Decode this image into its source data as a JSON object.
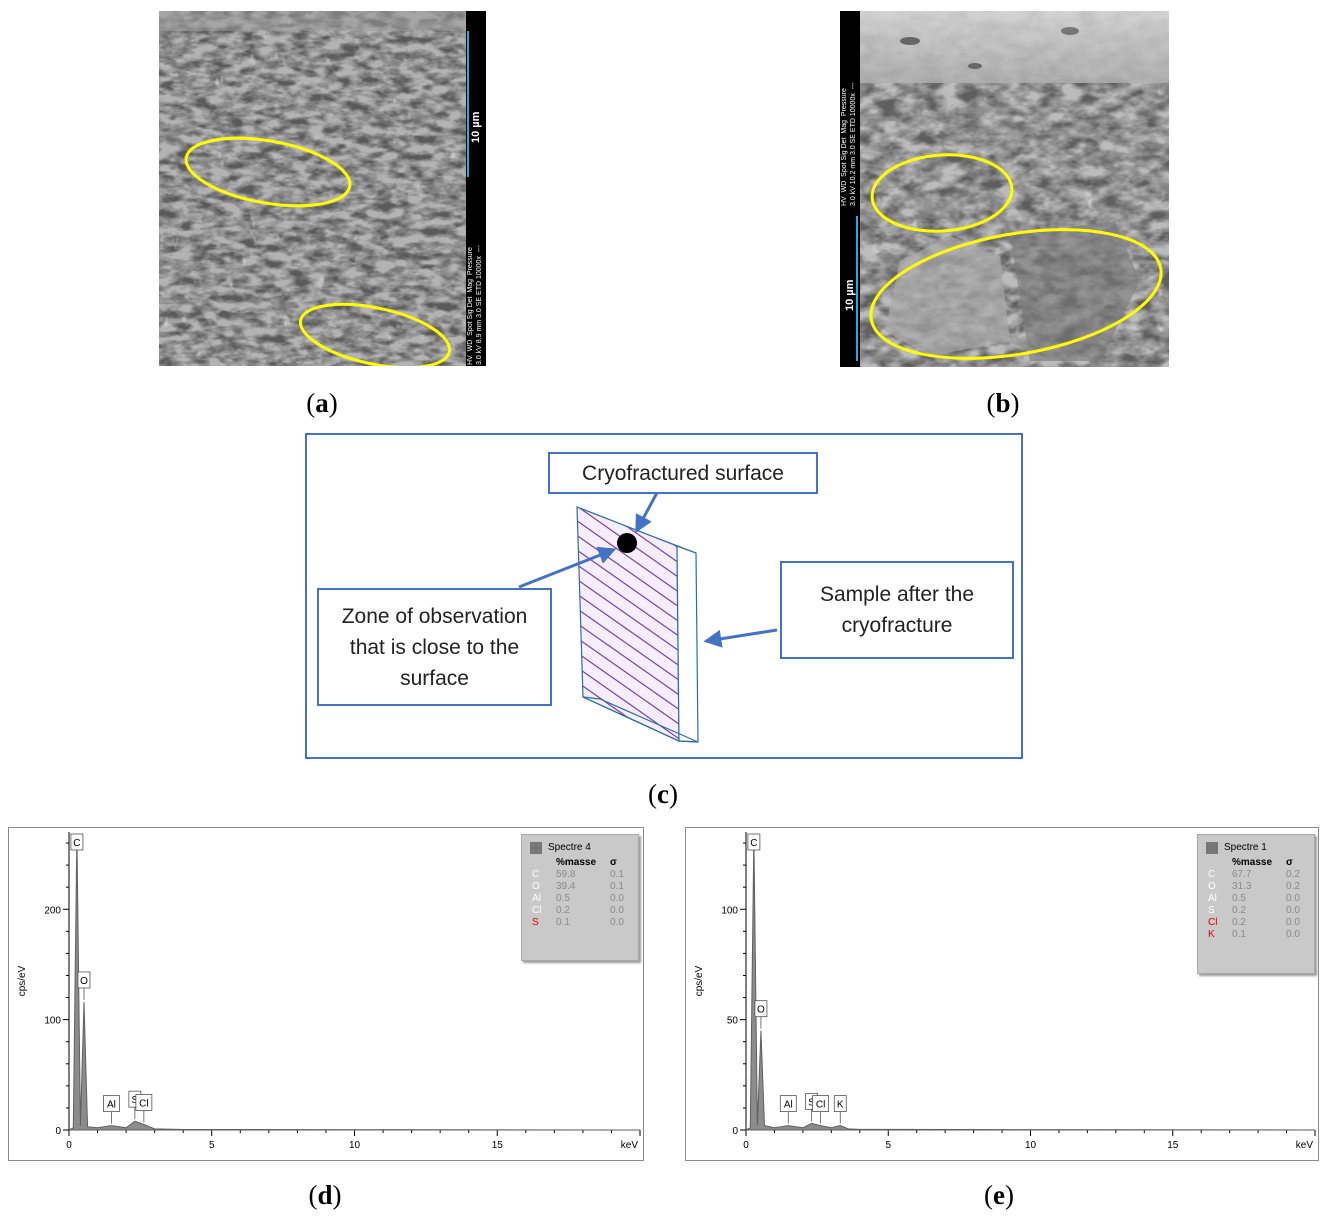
{
  "panels": {
    "a": {
      "caption_letter": "a",
      "scale": "10 µm",
      "info": [
        "HV",
        "WD",
        "Spot Sig Det",
        "Mag",
        "Pressure",
        "3.0 kV 8.9 mm 3.0 SE ETD 10000x",
        "---"
      ]
    },
    "b": {
      "caption_letter": "b",
      "scale": "10 µm",
      "info": [
        "HV",
        "WD",
        "Spot Sig Det",
        "Mag",
        "Pressure",
        "3.0 kV 10.2 mm 3.0 SE ETD 10000x",
        "---"
      ]
    },
    "c": {
      "caption_letter": "c",
      "label_surface": "Cryofractured surface",
      "label_zone": "Zone of observation that is close to the surface",
      "label_sample": "Sample after the cryofracture"
    },
    "d": {
      "caption_letter": "d"
    },
    "e": {
      "caption_letter": "e"
    }
  },
  "chart_data": [
    {
      "type": "line",
      "xlabel": "keV",
      "ylabel": "cps/eV",
      "xlim": [
        0,
        20
      ],
      "ylim": [
        0,
        270
      ],
      "xticks": [
        "0",
        "5",
        "10",
        "15"
      ],
      "yticks": [
        "0",
        "100",
        "200"
      ],
      "series": [
        {
          "name": "Spectre 4",
          "x": [
            0.0,
            0.15,
            0.277,
            0.4,
            0.525,
            0.65,
            1.0,
            1.486,
            2.0,
            2.307,
            2.622,
            3.0,
            4.0,
            20.0
          ],
          "y": [
            0,
            2,
            268,
            4,
            116,
            3,
            2,
            4,
            2,
            8,
            5,
            1,
            0.5,
            0
          ]
        }
      ],
      "peaks": [
        {
          "label": "C",
          "x": 0.277
        },
        {
          "label": "O",
          "x": 0.525
        },
        {
          "label": "Al",
          "x": 1.486
        },
        {
          "label": "S",
          "x": 2.307
        },
        {
          "label": "Cl",
          "x": 2.622
        }
      ],
      "legend": {
        "title": "Spectre 4",
        "col_header": "%masse",
        "sigma_header": "σ",
        "rows": [
          {
            "el": "C",
            "mass": "59.8",
            "sigma": "0.1",
            "color": "#ffffff"
          },
          {
            "el": "O",
            "mass": "39.4",
            "sigma": "0.1",
            "color": "#ffffff"
          },
          {
            "el": "Al",
            "mass": "0.5",
            "sigma": "0.0",
            "color": "#ffffff"
          },
          {
            "el": "Cl",
            "mass": "0.2",
            "sigma": "0.0",
            "color": "#ffffff"
          },
          {
            "el": "S",
            "mass": "0.1",
            "sigma": "0.0",
            "color": "#e00000"
          }
        ]
      }
    },
    {
      "type": "line",
      "xlabel": "keV",
      "ylabel": "cps/eV",
      "xlim": [
        0,
        20
      ],
      "ylim": [
        0,
        135
      ],
      "xticks": [
        "0",
        "5",
        "10",
        "15"
      ],
      "yticks": [
        "0",
        "50",
        "100"
      ],
      "series": [
        {
          "name": "Spectre 1",
          "x": [
            0.0,
            0.15,
            0.277,
            0.4,
            0.525,
            0.65,
            1.0,
            1.486,
            2.0,
            2.307,
            2.622,
            3.0,
            3.313,
            3.6,
            4.0,
            20.0
          ],
          "y": [
            0,
            1,
            133,
            2,
            45,
            2,
            1,
            2,
            1,
            3,
            2,
            1,
            2,
            0.5,
            0.3,
            0
          ]
        }
      ],
      "peaks": [
        {
          "label": "C",
          "x": 0.277
        },
        {
          "label": "O",
          "x": 0.525
        },
        {
          "label": "Al",
          "x": 1.486
        },
        {
          "label": "S",
          "x": 2.307
        },
        {
          "label": "Cl",
          "x": 2.622
        },
        {
          "label": "K",
          "x": 3.313
        }
      ],
      "legend": {
        "title": "Spectre 1",
        "col_header": "%masse",
        "sigma_header": "σ",
        "rows": [
          {
            "el": "C",
            "mass": "67.7",
            "sigma": "0.2",
            "color": "#ffffff"
          },
          {
            "el": "O",
            "mass": "31.3",
            "sigma": "0.2",
            "color": "#ffffff"
          },
          {
            "el": "Al",
            "mass": "0.5",
            "sigma": "0.0",
            "color": "#ffffff"
          },
          {
            "el": "S",
            "mass": "0.2",
            "sigma": "0.0",
            "color": "#ffffff"
          },
          {
            "el": "Cl",
            "mass": "0.2",
            "sigma": "0.0",
            "color": "#e00000"
          },
          {
            "el": "K",
            "mass": "0.1",
            "sigma": "0.0",
            "color": "#e00000"
          }
        ]
      }
    }
  ],
  "colors": {
    "highlight_ellipse": "#ffff00",
    "schematic_border": "#4472c4",
    "scale_line": "#2aa9e0",
    "hatch": "#7030a0"
  }
}
